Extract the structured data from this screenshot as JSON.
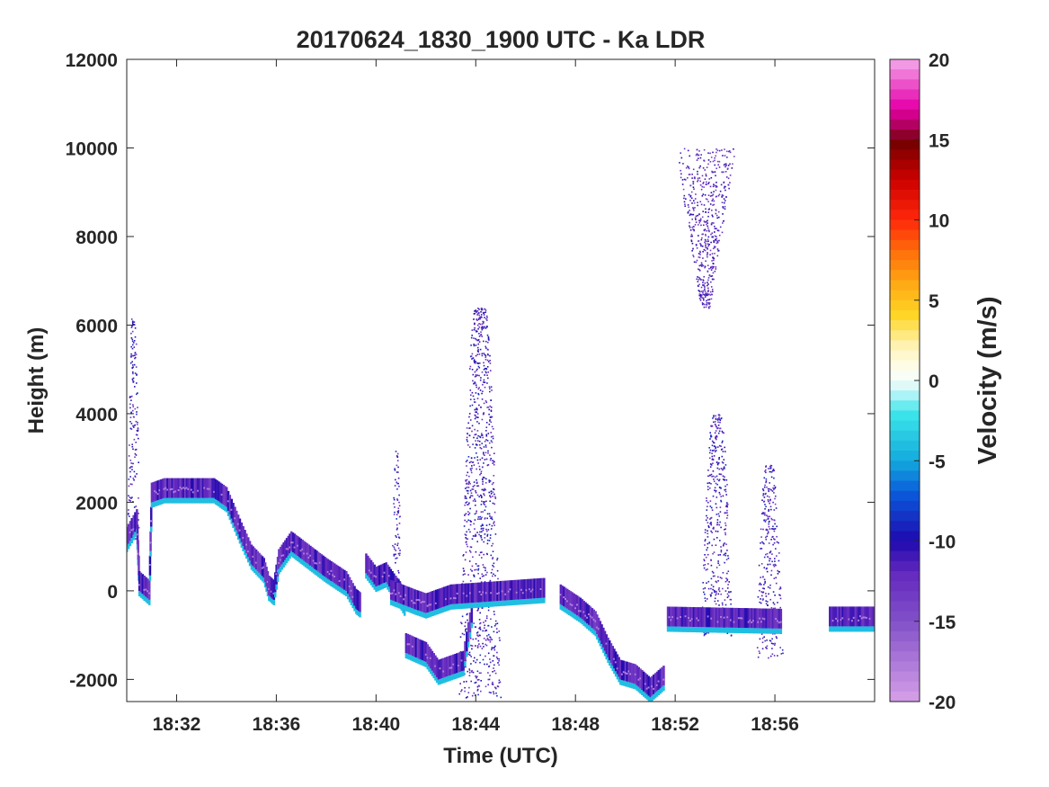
{
  "chart_data": {
    "type": "heatmap",
    "title": "20170624_1830_1900 UTC - Ka LDR",
    "xlabel": "Time (UTC)",
    "ylabel": "Height (m)",
    "x_ticks": [
      "18:32",
      "18:36",
      "18:40",
      "18:44",
      "18:48",
      "18:52",
      "18:56"
    ],
    "x_tick_minutes": [
      2,
      6,
      10,
      14,
      18,
      22,
      26
    ],
    "xlim_minutes": [
      0,
      30
    ],
    "y_ticks": [
      "12000",
      "10000",
      "8000",
      "6000",
      "4000",
      "2000",
      "0",
      "-2000"
    ],
    "y_tick_values": [
      12000,
      10000,
      8000,
      6000,
      4000,
      2000,
      0,
      -2000
    ],
    "ylim": [
      -2500,
      12000
    ],
    "colorbar": {
      "label": "Velocity (m/s)",
      "ticks": [
        "20",
        "15",
        "10",
        "5",
        "0",
        "-5",
        "-10",
        "-15",
        "-20"
      ],
      "tick_values": [
        20,
        15,
        10,
        5,
        0,
        -5,
        -10,
        -15,
        -20
      ],
      "range": [
        -20,
        20
      ]
    },
    "echo_regions": [
      {
        "name": "high-cloud",
        "x_minutes": [
          22.0,
          24.4
        ],
        "height_range": [
          6400,
          10000
        ],
        "dominant_value": -12
      },
      {
        "name": "plume-1843",
        "x_minutes": [
          13.3,
          15.0
        ],
        "height_range": [
          -2400,
          6400
        ],
        "dominant_value": -11
      },
      {
        "name": "plume-1854",
        "x_minutes": [
          23.0,
          24.3
        ],
        "height_range": [
          -1000,
          4000
        ],
        "dominant_value": -11
      },
      {
        "name": "plume-1841",
        "x_minutes": [
          10.6,
          11.0
        ],
        "height_range": [
          -200,
          3200
        ],
        "dominant_value": -11
      },
      {
        "name": "plume-1856",
        "x_minutes": [
          25.2,
          26.3
        ],
        "height_range": [
          -1500,
          2900
        ],
        "dominant_value": -11
      },
      {
        "name": "early-column",
        "x_minutes": [
          0.0,
          0.5
        ],
        "height_range": [
          1000,
          6200
        ],
        "dominant_value": -11
      },
      {
        "name": "band-1831",
        "x_minutes": [
          1.0,
          3.7
        ],
        "height_range": [
          2100,
          2500
        ],
        "dominant_value": -12
      }
    ]
  }
}
